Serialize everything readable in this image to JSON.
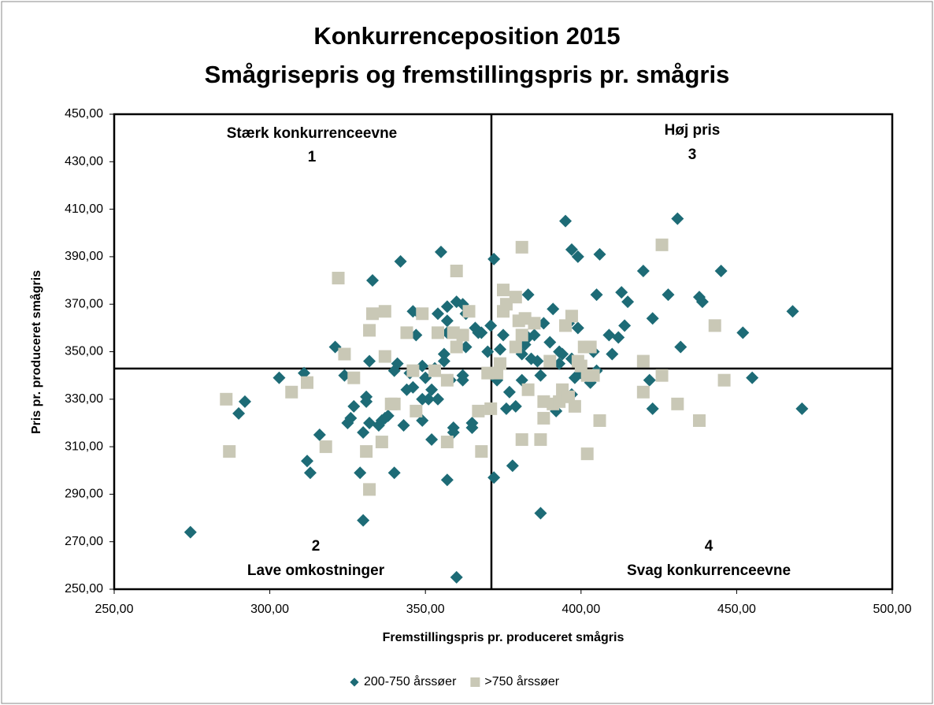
{
  "chart_data": {
    "type": "scatter",
    "title": "Konkurrenceposition 2015",
    "subtitle": "Smågrisepris og fremstillingspris pr. smågris",
    "xlabel": "Fremstillingspris pr. produceret smågris",
    "ylabel": "Pris pr. produceret smågris",
    "xlim": [
      250,
      500
    ],
    "ylim": [
      250,
      450
    ],
    "xticks": [
      {
        "value": 250,
        "label": "250,00"
      },
      {
        "value": 300,
        "label": "300,00"
      },
      {
        "value": 350,
        "label": "350,00"
      },
      {
        "value": 400,
        "label": "400,00"
      },
      {
        "value": 450,
        "label": "450,00"
      },
      {
        "value": 500,
        "label": "500,00"
      }
    ],
    "yticks": [
      {
        "value": 250,
        "label": "250,00"
      },
      {
        "value": 270,
        "label": "270,00"
      },
      {
        "value": 290,
        "label": "290,00"
      },
      {
        "value": 310,
        "label": "310,00"
      },
      {
        "value": 330,
        "label": "330,00"
      },
      {
        "value": 350,
        "label": "350,00"
      },
      {
        "value": 370,
        "label": "370,00"
      },
      {
        "value": 390,
        "label": "390,00"
      },
      {
        "value": 410,
        "label": "410,00"
      },
      {
        "value": 430,
        "label": "430,00"
      },
      {
        "value": 450,
        "label": "450,00"
      }
    ],
    "reference_lines": {
      "x": 371.2,
      "y": 342.9
    },
    "annotations": [
      {
        "label": "Stærk konkurrenceevne",
        "number": "1"
      },
      {
        "label": "Høj pris",
        "number": "3"
      },
      {
        "label": "Lave omkostninger",
        "number": "2"
      },
      {
        "label": "Svag konkurrenceevne",
        "number": "4"
      }
    ],
    "legend": "bottom",
    "series": [
      {
        "name": "200-750 årssøer",
        "color": "#1d6b76",
        "marker": "diamond",
        "x": [
          274.5,
          292,
          290,
          303,
          311,
          312,
          313,
          316,
          321,
          324,
          325,
          326,
          327,
          329,
          330,
          330,
          331,
          331,
          332,
          332,
          333,
          335,
          336,
          337,
          338,
          340,
          340,
          341,
          342,
          343,
          344,
          345,
          346,
          346,
          347,
          348,
          349,
          349,
          349,
          350,
          351,
          352,
          352,
          353,
          354,
          354,
          355,
          356,
          356,
          357,
          357,
          357,
          357,
          358,
          359,
          359,
          360,
          360,
          362,
          362,
          362,
          363,
          363,
          365,
          365,
          366,
          367,
          368,
          370,
          371,
          372,
          372,
          373,
          374,
          375,
          376,
          377,
          378,
          379,
          381,
          381,
          382,
          383,
          383,
          384,
          385,
          386,
          387,
          387,
          388,
          389,
          390,
          391,
          392,
          393,
          393,
          394,
          395,
          396,
          397,
          397,
          397,
          398,
          399,
          399,
          400,
          401,
          403,
          404,
          405,
          405,
          406,
          409,
          410,
          412,
          413,
          414,
          415,
          420,
          422,
          423,
          423,
          428,
          431,
          432,
          438,
          439,
          445,
          452,
          455,
          468,
          471
        ],
        "y": [
          274,
          329,
          324,
          339,
          341,
          304,
          299,
          315,
          352,
          340,
          320,
          322,
          327,
          299,
          279,
          316,
          331,
          329,
          320,
          346,
          380,
          319,
          321,
          322,
          323,
          299,
          342,
          345,
          388,
          319,
          334,
          341,
          335,
          367,
          357,
          366,
          330,
          321,
          344,
          339,
          330,
          313,
          334,
          343,
          330,
          366,
          392,
          346,
          349,
          296,
          358,
          363,
          369,
          338,
          318,
          316,
          371,
          255,
          338,
          340,
          370,
          366,
          352,
          320,
          318,
          360,
          358,
          358,
          350,
          361,
          389,
          297,
          338,
          351,
          357,
          326,
          333,
          302,
          327,
          349,
          338,
          353,
          356,
          374,
          347,
          357,
          346,
          282,
          340,
          362,
          329,
          354,
          368,
          325,
          350,
          345,
          349,
          405,
          362,
          332,
          347,
          393,
          339,
          390,
          360,
          341,
          340,
          337,
          350,
          342,
          374,
          391,
          357,
          349,
          356,
          375,
          361,
          371,
          384,
          338,
          326,
          364,
          374,
          406,
          352,
          373,
          371,
          384,
          358,
          339,
          367,
          326
        ]
      },
      {
        "name": ">750 årssøer",
        "color": "#c9c8b6",
        "marker": "square",
        "x": [
          286,
          287,
          307,
          312,
          318,
          322,
          324,
          327,
          331,
          332,
          332,
          333,
          336,
          337,
          337,
          339,
          340,
          344,
          346,
          347,
          349,
          353,
          354,
          357,
          357,
          359,
          360,
          360,
          362,
          364,
          367,
          368,
          370,
          371,
          373,
          374,
          375,
          375,
          376,
          379,
          379,
          380,
          381,
          381,
          381,
          382,
          383,
          385,
          387,
          388,
          388,
          390,
          391,
          393,
          394,
          395,
          396,
          397,
          398,
          399,
          400,
          401,
          402,
          402,
          403,
          404,
          406,
          420,
          420,
          426,
          426,
          431,
          438,
          443,
          446
        ],
        "y": [
          330,
          308,
          333,
          337,
          310,
          381,
          349,
          339,
          308,
          292,
          359,
          366,
          312,
          348,
          367,
          328,
          328,
          358,
          342,
          325,
          366,
          342,
          358,
          312,
          338,
          358,
          384,
          352,
          357,
          367,
          325,
          308,
          341,
          326,
          341,
          345,
          376,
          367,
          370,
          373,
          352,
          363,
          313,
          357,
          394,
          364,
          334,
          362,
          313,
          322,
          329,
          346,
          328,
          329,
          334,
          361,
          331,
          365,
          327,
          346,
          344,
          352,
          340,
          307,
          352,
          340,
          321,
          333,
          346,
          395,
          340,
          328,
          321,
          361,
          338
        ]
      }
    ]
  }
}
